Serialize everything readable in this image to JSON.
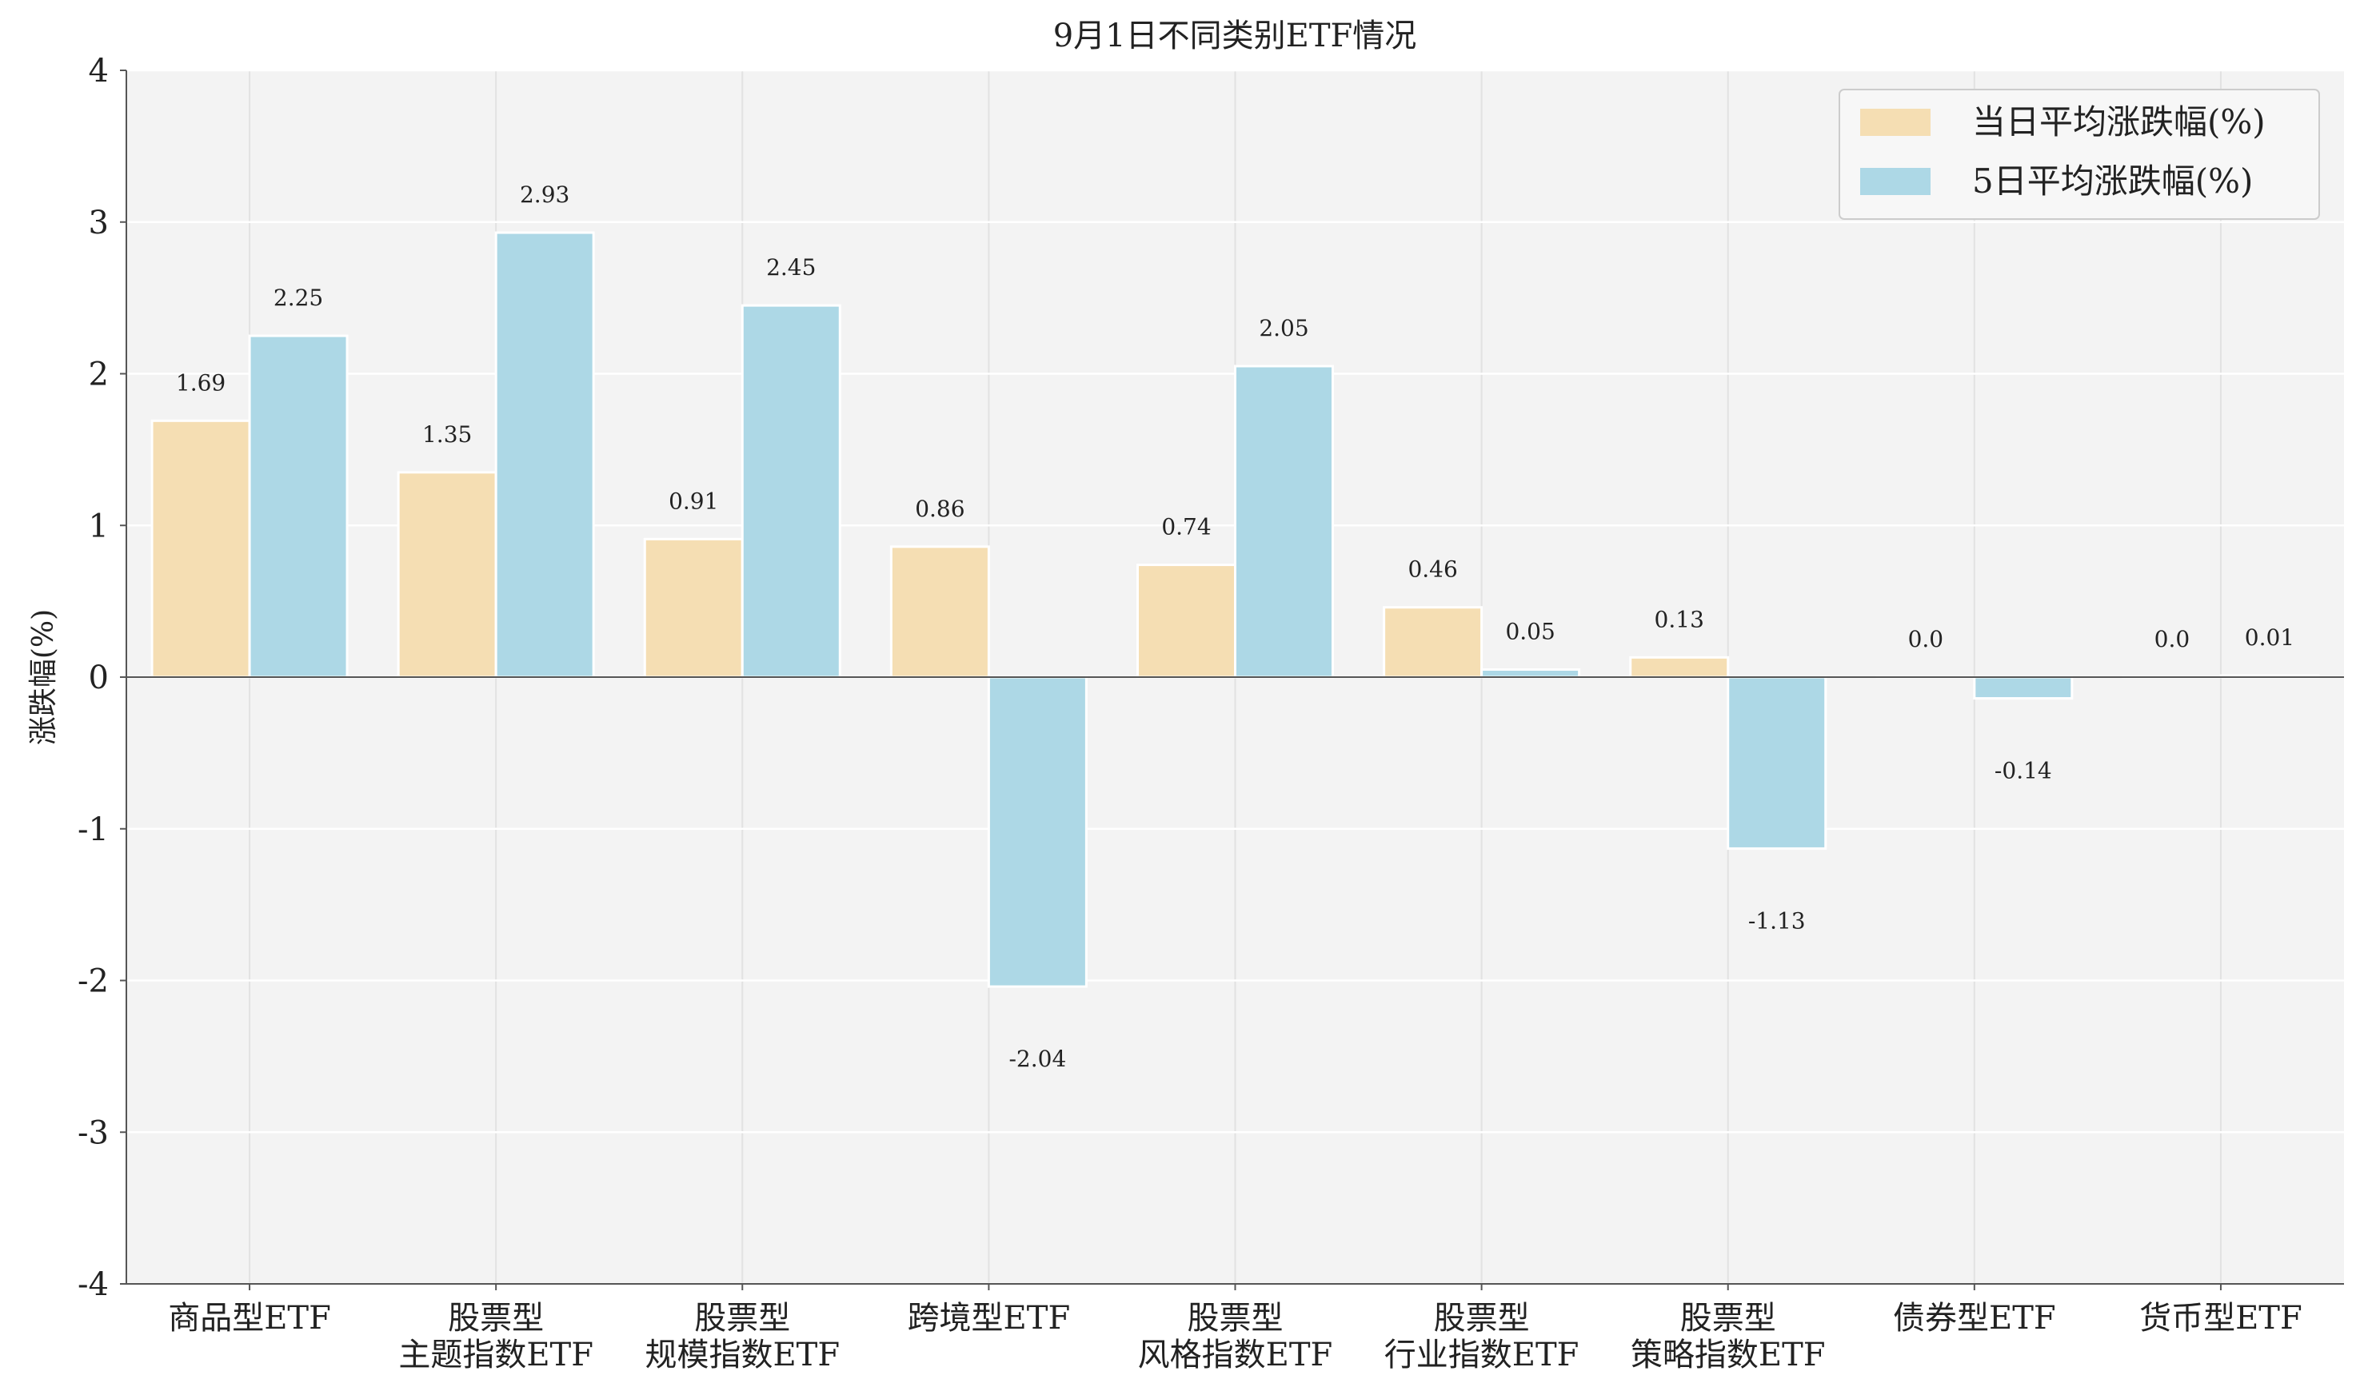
{
  "chart_data": {
    "type": "bar",
    "title": "9月1日不同类别ETF情况",
    "xlabel": "",
    "ylabel": "涨跌幅(%)",
    "ylim": [
      -4,
      4
    ],
    "yticks": [
      "4",
      "3",
      "2",
      "1",
      "0",
      "-1",
      "-2",
      "-3",
      "-4"
    ],
    "grid": true,
    "legend_position": "top-right",
    "categories": [
      "商品型ETF",
      "股票型\n主题指数ETF",
      "股票型\n规模指数ETF",
      "跨境型ETF",
      "股票型\n风格指数ETF",
      "股票型\n行业指数ETF",
      "股票型\n策略指数ETF",
      "债券型ETF",
      "货币型ETF"
    ],
    "series": [
      {
        "name": "当日平均涨跌幅(%)",
        "color": "#F5DEB3",
        "values": [
          1.69,
          1.35,
          0.91,
          0.86,
          0.74,
          0.46,
          0.13,
          0.0,
          0.0
        ],
        "labels": [
          "1.69",
          "1.35",
          "0.91",
          "0.86",
          "0.74",
          "0.46",
          "0.13",
          "0.0",
          "0.0"
        ]
      },
      {
        "name": "5日平均涨跌幅(%)",
        "color": "#ADD8E6",
        "values": [
          2.25,
          2.93,
          2.45,
          -2.04,
          2.05,
          0.05,
          -1.13,
          -0.14,
          0.01
        ],
        "labels": [
          "2.25",
          "2.93",
          "2.45",
          "-2.04",
          "2.05",
          "0.05",
          "-1.13",
          "-0.14",
          "0.01"
        ]
      }
    ]
  }
}
